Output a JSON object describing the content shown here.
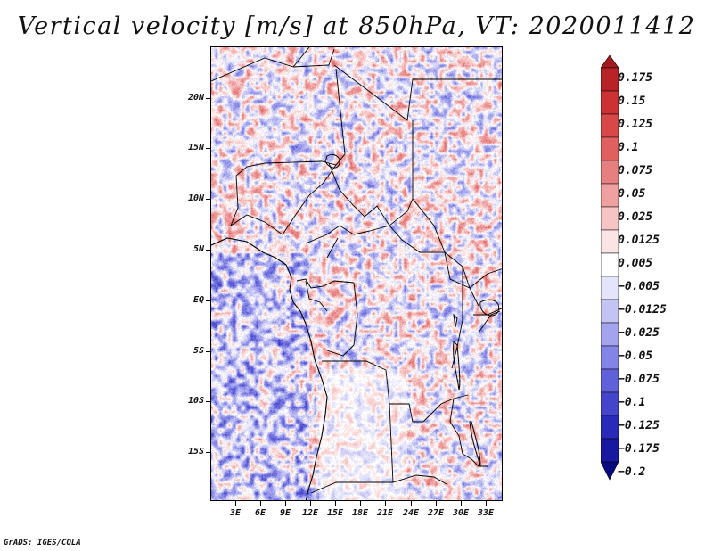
{
  "title": "Vertical velocity [m/s] at 850hPa, VT: 2020011412",
  "footer": "GrADS: IGES/COLA",
  "map": {
    "variable": "Vertical velocity",
    "units": "m/s",
    "level": "850hPa",
    "valid_time": "2020011412",
    "region": "Central Africa",
    "lat_labels": [
      "20N",
      "15N",
      "10N",
      "5N",
      "EQ",
      "5S",
      "10S",
      "15S"
    ],
    "lon_labels": [
      "3E",
      "6E",
      "9E",
      "12E",
      "15E",
      "18E",
      "21E",
      "24E",
      "27E",
      "30E",
      "33E"
    ]
  },
  "colorbar": {
    "levels": [
      "0.175",
      "0.15",
      "0.125",
      "0.1",
      "0.075",
      "0.05",
      "0.025",
      "0.0125",
      "0.005",
      "−0.005",
      "−0.0125",
      "−0.025",
      "−0.05",
      "−0.075",
      "−0.1",
      "−0.125",
      "−0.175",
      "−0.2"
    ],
    "colors": [
      "#a01a1e",
      "#b82327",
      "#cc3134",
      "#d84848",
      "#e06060",
      "#e68080",
      "#efa0a0",
      "#f6c4c4",
      "#fbe4e4",
      "#ffffff",
      "#e4e4fb",
      "#c4c4f4",
      "#a4a4ee",
      "#8484e6",
      "#6060d8",
      "#4444cc",
      "#2a2ab8",
      "#1818a0",
      "#0a0a80"
    ]
  }
}
